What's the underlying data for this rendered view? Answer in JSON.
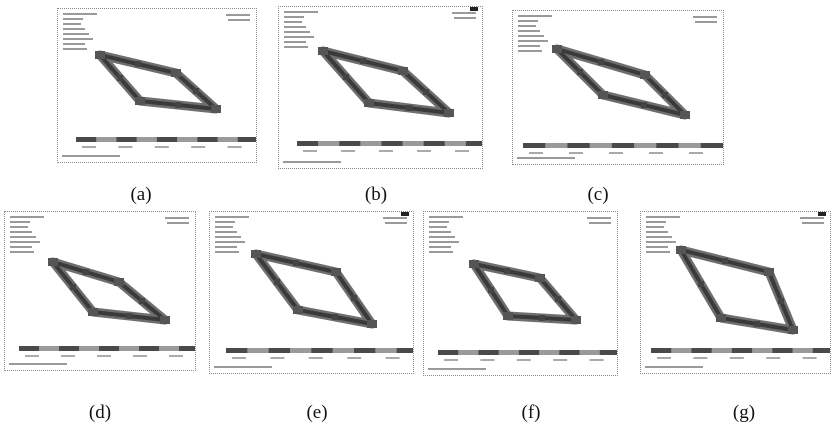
{
  "figure": {
    "panels": [
      {
        "id": "a",
        "caption": "(a)"
      },
      {
        "id": "b",
        "caption": "(b)"
      },
      {
        "id": "c",
        "caption": "(c)"
      },
      {
        "id": "d",
        "caption": "(d)"
      },
      {
        "id": "e",
        "caption": "(e)"
      },
      {
        "id": "f",
        "caption": "(f)"
      },
      {
        "id": "g",
        "caption": "(g)"
      }
    ]
  },
  "colors": {
    "frame_dark": "#3a3a3a",
    "frame_mid": "#6e6e6e",
    "joint": "#555555",
    "colorbar_dark": "#4a4a4a",
    "colorbar_light": "#9a9a9a",
    "border": "#8a8a8a"
  }
}
